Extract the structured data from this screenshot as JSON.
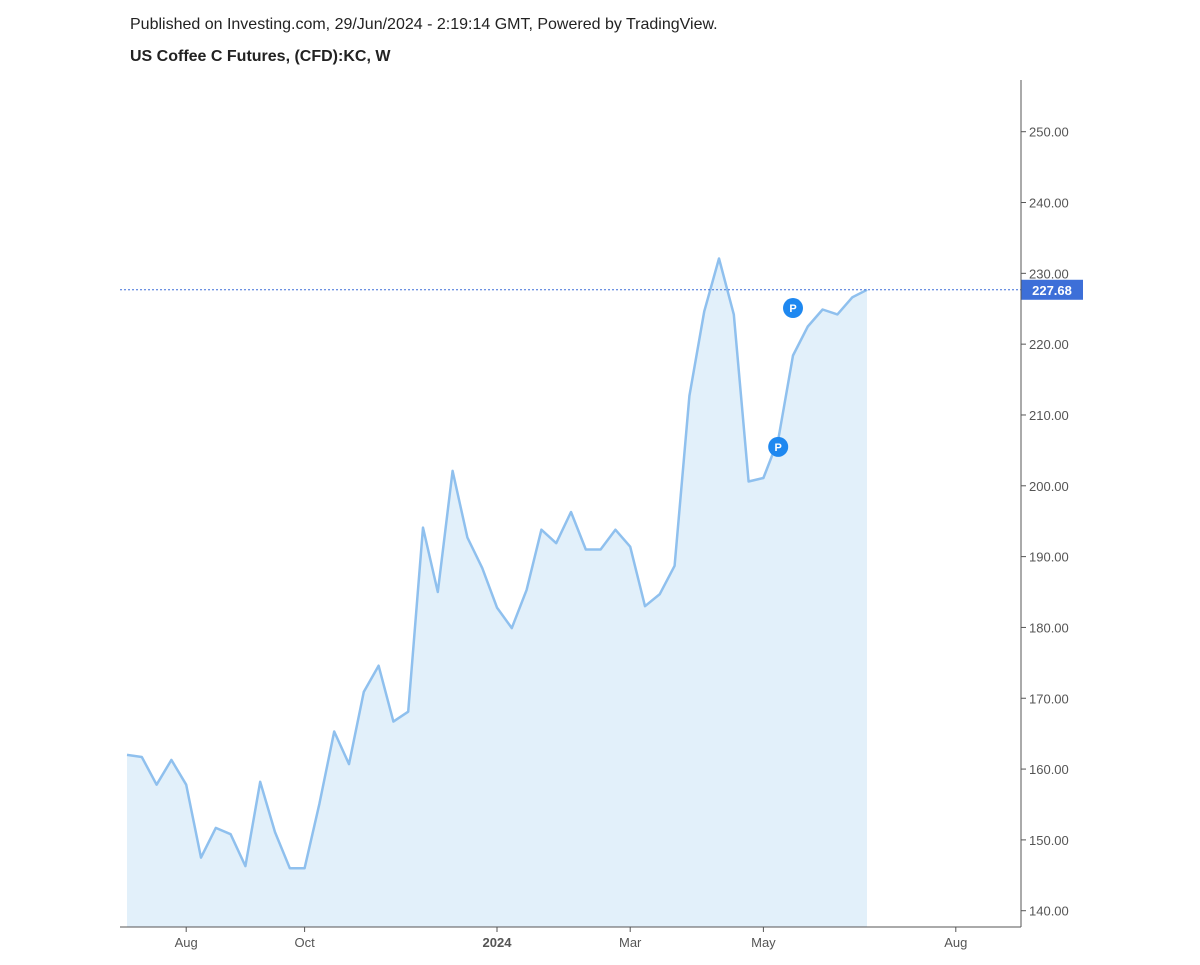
{
  "chart_data": {
    "type": "area",
    "subtitle": "Published on Investing.com, 29/Jun/2024 - 2:19:14 GMT, Powered by TradingView.",
    "title": "US Coffee C Futures, (CFD):KC, W",
    "watermark": {
      "main": "Investing",
      "suffix": ".com"
    },
    "categories": [
      null,
      null,
      null,
      null,
      "Aug",
      null,
      null,
      null,
      null,
      null,
      null,
      null,
      "Oct",
      null,
      null,
      null,
      null,
      null,
      null,
      null,
      null,
      null,
      null,
      null,
      null,
      "2024",
      null,
      null,
      null,
      null,
      null,
      null,
      null,
      null,
      "Mar",
      null,
      null,
      null,
      null,
      null,
      null,
      null,
      null,
      "May",
      null,
      null,
      null,
      null,
      null,
      null,
      null,
      null,
      null,
      null,
      null,
      null,
      "Aug"
    ],
    "values": [
      162.0,
      161.7,
      157.8,
      161.3,
      157.8,
      147.5,
      151.7,
      150.8,
      146.3,
      158.2,
      151.1,
      146.0,
      146.0,
      155.1,
      165.3,
      160.7,
      170.9,
      174.6,
      166.7,
      168.1,
      194.1,
      185.0,
      202.1,
      192.7,
      188.4,
      182.8,
      179.9,
      185.3,
      193.8,
      191.9,
      196.3,
      191.0,
      191.0,
      193.8,
      191.4,
      183.0,
      184.7,
      188.7,
      212.7,
      224.6,
      232.1,
      224.2,
      200.6,
      201.1,
      206.5,
      218.4,
      222.5,
      224.9,
      224.2,
      226.6,
      227.68,
      null,
      null,
      null,
      null,
      null,
      null
    ],
    "color": "#8fc0ee",
    "fill": "#e2f0fa",
    "last_price_color": "#3d6fd8",
    "markers": [
      {
        "label": "P",
        "category_index": 44,
        "value": 205.5
      },
      {
        "label": "P",
        "category_index": 45,
        "value": 225.1
      }
    ],
    "ylim": [
      137.7,
      257.3
    ],
    "yticks": [
      {
        "value": 140,
        "label": "140.00"
      },
      {
        "value": 150,
        "label": "150.00"
      },
      {
        "value": 160,
        "label": "160.00"
      },
      {
        "value": 170,
        "label": "170.00"
      },
      {
        "value": 180,
        "label": "180.00"
      },
      {
        "value": 190,
        "label": "190.00"
      },
      {
        "value": 200,
        "label": "200.00"
      },
      {
        "value": 210,
        "label": "210.00"
      },
      {
        "value": 220,
        "label": "220.00"
      },
      {
        "value": 230,
        "label": "230.00"
      },
      {
        "value": 240,
        "label": "240.00"
      },
      {
        "value": 250,
        "label": "250.00"
      }
    ]
  }
}
